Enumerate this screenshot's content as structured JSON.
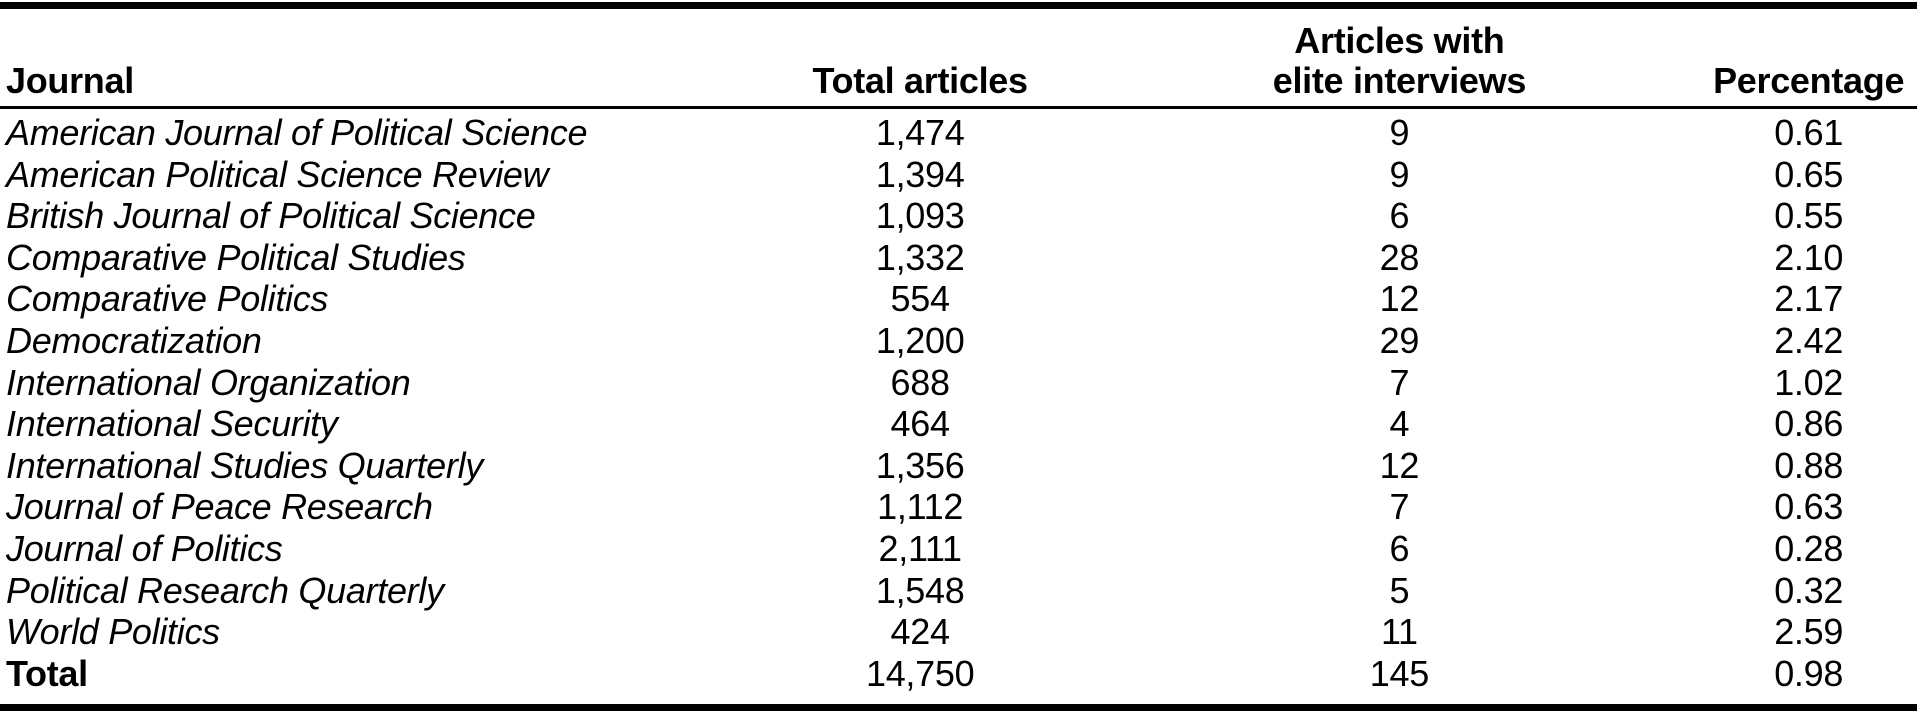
{
  "colors": {
    "text": "#000000",
    "background": "#ffffff",
    "rule": "#000000"
  },
  "table": {
    "columns": {
      "journal": {
        "label": "Journal"
      },
      "total_articles": {
        "label": "Total articles"
      },
      "elite_interviews": {
        "line1": "Articles with",
        "line2": "elite interviews"
      },
      "percentage": {
        "label": "Percentage"
      }
    },
    "rows": [
      {
        "journal": "American Journal of Political Science",
        "total_articles": "1,474",
        "elite_interviews": "9",
        "percentage": "0.61"
      },
      {
        "journal": "American Political Science Review",
        "total_articles": "1,394",
        "elite_interviews": "9",
        "percentage": "0.65"
      },
      {
        "journal": "British Journal of Political Science",
        "total_articles": "1,093",
        "elite_interviews": "6",
        "percentage": "0.55"
      },
      {
        "journal": "Comparative Political Studies",
        "total_articles": "1,332",
        "elite_interviews": "28",
        "percentage": "2.10"
      },
      {
        "journal": "Comparative Politics",
        "total_articles": "554",
        "elite_interviews": "12",
        "percentage": "2.17"
      },
      {
        "journal": "Democratization",
        "total_articles": "1,200",
        "elite_interviews": "29",
        "percentage": "2.42"
      },
      {
        "journal": "International Organization",
        "total_articles": "688",
        "elite_interviews": "7",
        "percentage": "1.02"
      },
      {
        "journal": "International Security",
        "total_articles": "464",
        "elite_interviews": "4",
        "percentage": "0.86"
      },
      {
        "journal": "International Studies Quarterly",
        "total_articles": "1,356",
        "elite_interviews": "12",
        "percentage": "0.88"
      },
      {
        "journal": "Journal of Peace Research",
        "total_articles": "1,112",
        "elite_interviews": "7",
        "percentage": "0.63"
      },
      {
        "journal": "Journal of Politics",
        "total_articles": "2,111",
        "elite_interviews": "6",
        "percentage": "0.28"
      },
      {
        "journal": "Political Research Quarterly",
        "total_articles": "1,548",
        "elite_interviews": "5",
        "percentage": "0.32"
      },
      {
        "journal": "World Politics",
        "total_articles": "424",
        "elite_interviews": "11",
        "percentage": "2.59"
      }
    ],
    "total_row": {
      "journal": "Total",
      "total_articles": "14,750",
      "elite_interviews": "145",
      "percentage": "0.98"
    }
  }
}
